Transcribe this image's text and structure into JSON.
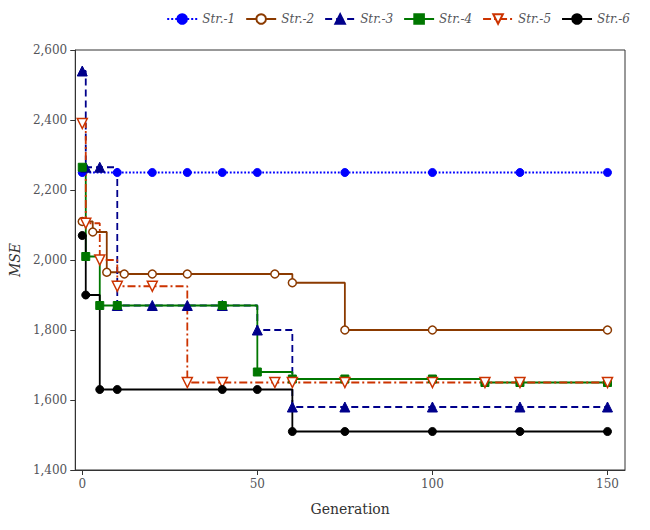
{
  "chart_data": {
    "type": "line",
    "xlabel": "Generation",
    "ylabel": "MSE",
    "xlim": [
      -2,
      155
    ],
    "ylim": [
      1400,
      2600
    ],
    "xticks": [
      0,
      50,
      100,
      150
    ],
    "yticks": [
      1400,
      1600,
      1800,
      2000,
      2200,
      2400,
      2600
    ],
    "grid": false,
    "legend": "upper right",
    "series": [
      {
        "name": "Str.-1",
        "type": "line",
        "color": "#0000ff",
        "line_style": "dotted",
        "marker": "circle",
        "x": [
          0,
          10,
          20,
          30,
          40,
          50,
          75,
          100,
          125,
          150
        ],
        "values": [
          2250,
          2250,
          2250,
          2250,
          2250,
          2250,
          2250,
          2250,
          2250,
          2250
        ]
      },
      {
        "name": "Str.-2",
        "type": "step",
        "color": "#8B3A00",
        "line_style": "solid",
        "marker": "circle-open",
        "x": [
          0,
          3,
          7,
          12,
          20,
          30,
          55,
          60,
          75,
          100,
          150
        ],
        "values": [
          2110,
          2080,
          1965,
          1960,
          1960,
          1960,
          1960,
          1935,
          1800,
          1800,
          1800
        ]
      },
      {
        "name": "Str.-3",
        "type": "step",
        "color": "#00008B",
        "line_style": "dashed",
        "marker": "triangle",
        "x": [
          0,
          1,
          5,
          10,
          20,
          30,
          40,
          50,
          60,
          75,
          100,
          125,
          150
        ],
        "values": [
          2540,
          2265,
          2265,
          1870,
          1870,
          1870,
          1870,
          1800,
          1580,
          1580,
          1580,
          1580,
          1580
        ]
      },
      {
        "name": "Str.-4",
        "type": "step",
        "color": "#007700",
        "line_style": "solid",
        "marker": "square",
        "x": [
          0,
          1,
          5,
          10,
          40,
          50,
          60,
          75,
          100,
          115,
          125,
          150
        ],
        "values": [
          2265,
          2010,
          1870,
          1870,
          1870,
          1680,
          1660,
          1660,
          1660,
          1650,
          1650,
          1650
        ]
      },
      {
        "name": "Str.-5",
        "type": "step",
        "color": "#cc3300",
        "line_style": "dashdot",
        "marker": "triangle-down-open",
        "x": [
          0,
          1,
          5,
          10,
          20,
          30,
          40,
          55,
          60,
          75,
          100,
          115,
          125,
          150
        ],
        "values": [
          2390,
          2105,
          2000,
          1925,
          1925,
          1650,
          1650,
          1650,
          1650,
          1650,
          1650,
          1650,
          1650,
          1650
        ]
      },
      {
        "name": "Str.-6",
        "type": "step",
        "color": "#000000",
        "line_style": "solid",
        "marker": "circle",
        "x": [
          0,
          1,
          5,
          10,
          40,
          50,
          60,
          75,
          100,
          125,
          150
        ],
        "values": [
          2070,
          1900,
          1630,
          1630,
          1630,
          1630,
          1510,
          1510,
          1510,
          1510,
          1510
        ]
      }
    ]
  }
}
